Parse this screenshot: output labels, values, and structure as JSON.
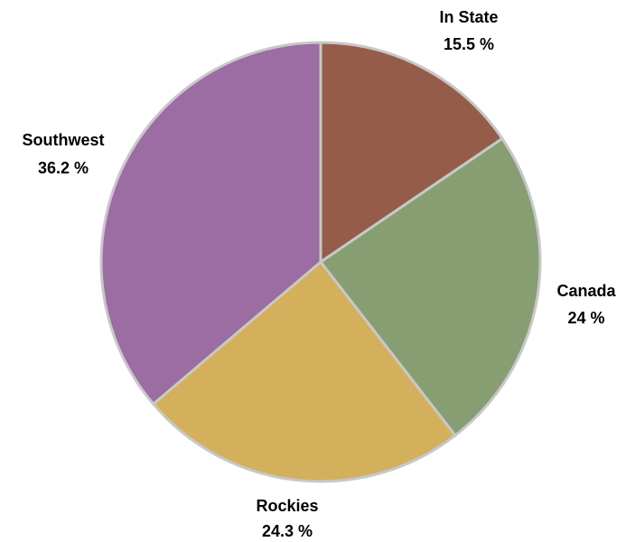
{
  "chart_data": {
    "type": "pie",
    "title": "",
    "start_angle_deg": 0,
    "direction": "clockwise",
    "slices": [
      {
        "name": "In State",
        "value": 15.5,
        "value_label": "15.5 %",
        "color": "#955d49"
      },
      {
        "name": "Canada",
        "value": 24,
        "value_label": "24 %",
        "color": "#869e72"
      },
      {
        "name": "Rockies",
        "value": 24.3,
        "value_label": "24.3 %",
        "color": "#d5b05c"
      },
      {
        "name": "Southwest",
        "value": 36.2,
        "value_label": "36.2 %",
        "color": "#9b6da2"
      }
    ],
    "slice_border_color": "#c8c8c8",
    "legend": "none"
  }
}
